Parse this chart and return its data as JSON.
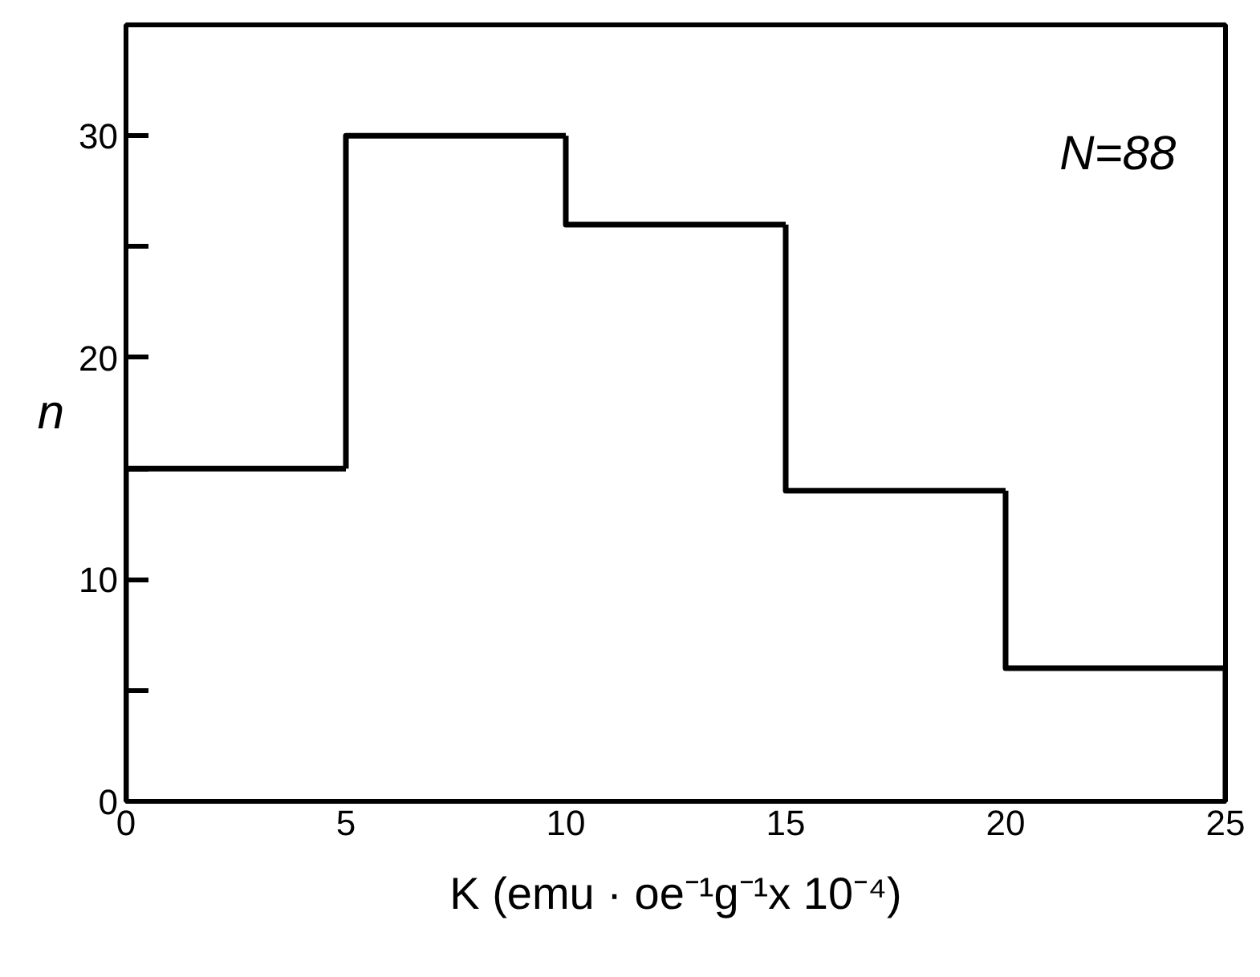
{
  "chart_data": {
    "type": "histogram",
    "bins": [
      0,
      5,
      10,
      15,
      20,
      25
    ],
    "values": [
      15,
      30,
      26,
      14,
      6
    ],
    "color": "#000000",
    "xlabel": "K (emu · oe⁻¹g⁻¹x 10⁻⁴)",
    "ylabel": "n",
    "annotations": [
      "N=88"
    ],
    "xlim": [
      0,
      25
    ],
    "ylim": [
      0,
      35
    ],
    "xticks": [
      0,
      5,
      10,
      15,
      20,
      25
    ],
    "yticks": [
      0,
      {
        "value": 5,
        "label": null
      },
      10,
      {
        "value": 15,
        "label": null
      },
      20,
      {
        "value": 25,
        "label": null
      },
      30
    ],
    "grid": false
  }
}
